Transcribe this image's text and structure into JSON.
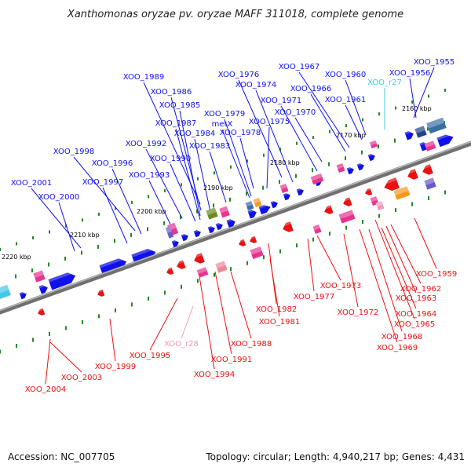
{
  "header": {
    "title": "Xanthomonas oryzae pv. oryzae MAFF 311018, complete genome"
  },
  "footer": {
    "accession": "Accession: NC_007705",
    "summary": "Topology: circular; Length: 4,940,217 bp; Genes: 4,431"
  },
  "colors": {
    "forward": "#1010ee",
    "reverse": "#ee1010",
    "rna": "#44c8e8",
    "pseudo": "#ee99bb",
    "backbone": "#707070",
    "tick": "#228822",
    "gc_pink": "#e8338f",
    "gc_orange": "#f49a1c",
    "gc_olive": "#6b8c22",
    "gc_purple": "#6a5acd"
  },
  "scale": {
    "ticks": [
      {
        "label": "2160 kbp"
      },
      {
        "label": "2170 kbp"
      },
      {
        "label": "2180 kbp"
      },
      {
        "label": "2190 kbp"
      },
      {
        "label": "2200 kbp"
      },
      {
        "label": "2210 kbp"
      },
      {
        "label": "2220 kbp"
      }
    ]
  },
  "genes_top": [
    {
      "label": "XOO_1955",
      "type": "forward"
    },
    {
      "label": "XOO_1956",
      "type": "forward"
    },
    {
      "label": "XOO_r27",
      "type": "rna"
    },
    {
      "label": "XOO_1960",
      "type": "forward"
    },
    {
      "label": "XOO_1961",
      "type": "forward"
    },
    {
      "label": "XOO_1967",
      "type": "forward"
    },
    {
      "label": "XOO_1966",
      "type": "forward"
    },
    {
      "label": "XOO_1970",
      "type": "forward"
    },
    {
      "label": "XOO_1971",
      "type": "forward"
    },
    {
      "label": "XOO_1976",
      "type": "forward"
    },
    {
      "label": "XOO_1974",
      "type": "forward"
    },
    {
      "label": "XOO_1975",
      "type": "forward"
    },
    {
      "label": "XOO_1979",
      "type": "forward"
    },
    {
      "label": "metX",
      "type": "forward"
    },
    {
      "label": "XOO_1978",
      "type": "forward"
    },
    {
      "label": "XOO_1989",
      "type": "forward"
    },
    {
      "label": "XOO_1986",
      "type": "forward"
    },
    {
      "label": "XOO_1985",
      "type": "forward"
    },
    {
      "label": "XOO_1987",
      "type": "forward"
    },
    {
      "label": "XOO_1984",
      "type": "forward"
    },
    {
      "label": "XOO_1983",
      "type": "forward"
    },
    {
      "label": "XOO_1992",
      "type": "forward"
    },
    {
      "label": "XOO_1990",
      "type": "forward"
    },
    {
      "label": "XOO_1993",
      "type": "forward"
    },
    {
      "label": "XOO_1998",
      "type": "forward"
    },
    {
      "label": "XOO_1996",
      "type": "forward"
    },
    {
      "label": "XOO_1997",
      "type": "forward"
    },
    {
      "label": "XOO_2001",
      "type": "forward"
    },
    {
      "label": "XOO_2000",
      "type": "forward"
    }
  ],
  "genes_bottom": [
    {
      "label": "XOO_1959",
      "type": "reverse"
    },
    {
      "label": "XOO_1962",
      "type": "reverse"
    },
    {
      "label": "XOO_1963",
      "type": "reverse"
    },
    {
      "label": "XOO_1964",
      "type": "reverse"
    },
    {
      "label": "XOO_1965",
      "type": "reverse"
    },
    {
      "label": "XOO_1968",
      "type": "reverse"
    },
    {
      "label": "XOO_1969",
      "type": "reverse"
    },
    {
      "label": "XOO_1973",
      "type": "reverse"
    },
    {
      "label": "XOO_1972",
      "type": "reverse"
    },
    {
      "label": "XOO_1977",
      "type": "reverse"
    },
    {
      "label": "XOO_1982",
      "type": "reverse"
    },
    {
      "label": "XOO_1981",
      "type": "reverse"
    },
    {
      "label": "XOO_1988",
      "type": "reverse"
    },
    {
      "label": "XOO_1991",
      "type": "reverse"
    },
    {
      "label": "XOO_1994",
      "type": "reverse"
    },
    {
      "label": "XOO_r28",
      "type": "pseudo"
    },
    {
      "label": "XOO_1995",
      "type": "reverse"
    },
    {
      "label": "XOO_1999",
      "type": "reverse"
    },
    {
      "label": "XOO_2003",
      "type": "reverse"
    },
    {
      "label": "XOO_2004",
      "type": "reverse"
    }
  ]
}
